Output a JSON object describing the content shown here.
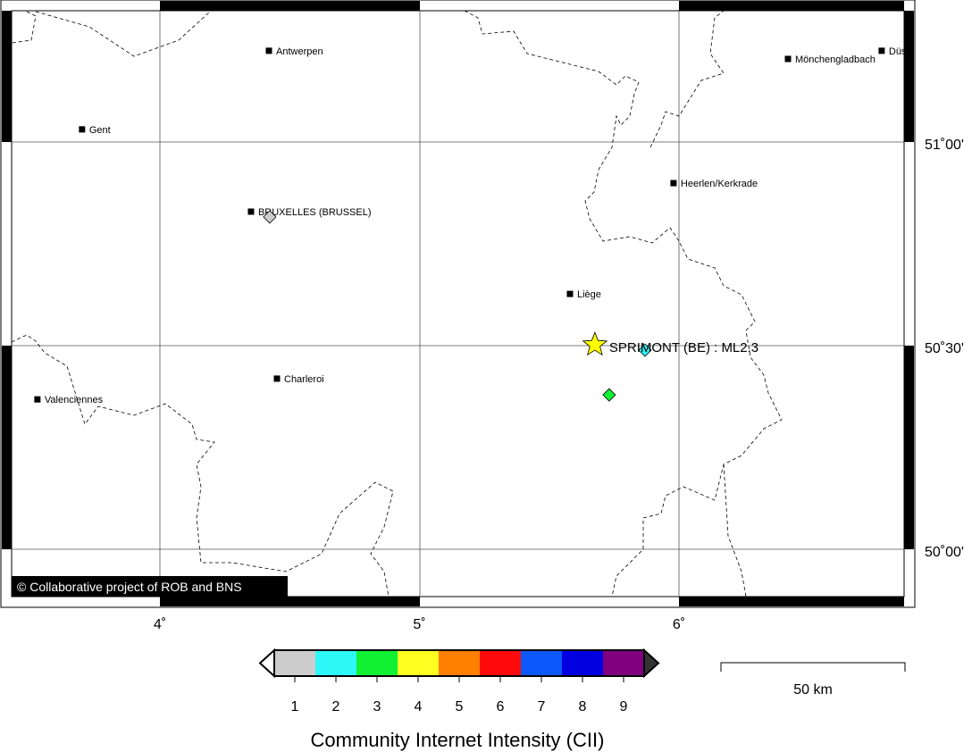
{
  "map": {
    "axes": {
      "lon_ticks": [
        {
          "value": 4,
          "label": "4˚"
        },
        {
          "value": 5,
          "label": "5˚"
        },
        {
          "value": 6,
          "label": "6˚"
        }
      ],
      "lat_ticks": [
        {
          "value": 51.0,
          "label": "51˚00'"
        },
        {
          "value": 50.5,
          "label": "50˚30'"
        },
        {
          "value": 50.0,
          "label": "50˚00'"
        }
      ]
    },
    "cities": [
      {
        "name": "Antwerpen",
        "lon": 4.42,
        "lat": 51.224
      },
      {
        "name": "Gent",
        "lon": 3.7,
        "lat": 51.031
      },
      {
        "name": "BRUXELLES (BRUSSEL)",
        "lon": 4.351,
        "lat": 50.829
      },
      {
        "name": "Heerlen/Kerkrade",
        "lon": 5.979,
        "lat": 50.899
      },
      {
        "name": "Liège",
        "lon": 5.58,
        "lat": 50.627
      },
      {
        "name": "Charleroi",
        "lon": 4.451,
        "lat": 50.419
      },
      {
        "name": "Valenciennes",
        "lon": 3.528,
        "lat": 50.368
      },
      {
        "name": "Mönchengladbach",
        "lon": 6.42,
        "lat": 51.204
      },
      {
        "name": "Düs",
        "lon": 6.781,
        "lat": 51.224
      }
    ],
    "epicenter": {
      "label": "SPRIMONT (BE) : ML2.3",
      "lon": 5.676,
      "lat": 50.502,
      "color": "#ffff00"
    },
    "observations": [
      {
        "intensity": 1,
        "lon": 4.423,
        "lat": 50.816
      },
      {
        "intensity": 2,
        "lon": 5.869,
        "lat": 50.489
      },
      {
        "intensity": 3,
        "lon": 5.731,
        "lat": 50.379
      }
    ],
    "copyright": "© Collaborative project of ROB and BNS",
    "scale_bar": {
      "label": "50 km"
    }
  },
  "legend": {
    "title": "Community Internet Intensity (CII)",
    "levels": [
      {
        "label": "1",
        "color": "#cccccc"
      },
      {
        "label": "2",
        "color": "#2ef7f7"
      },
      {
        "label": "3",
        "color": "#11f033"
      },
      {
        "label": "4",
        "color": "#ffff22"
      },
      {
        "label": "5",
        "color": "#ff8000"
      },
      {
        "label": "6",
        "color": "#ff0a0a"
      },
      {
        "label": "7",
        "color": "#0d58fa"
      },
      {
        "label": "8",
        "color": "#0000e0"
      },
      {
        "label": "9",
        "color": "#800080"
      }
    ]
  }
}
